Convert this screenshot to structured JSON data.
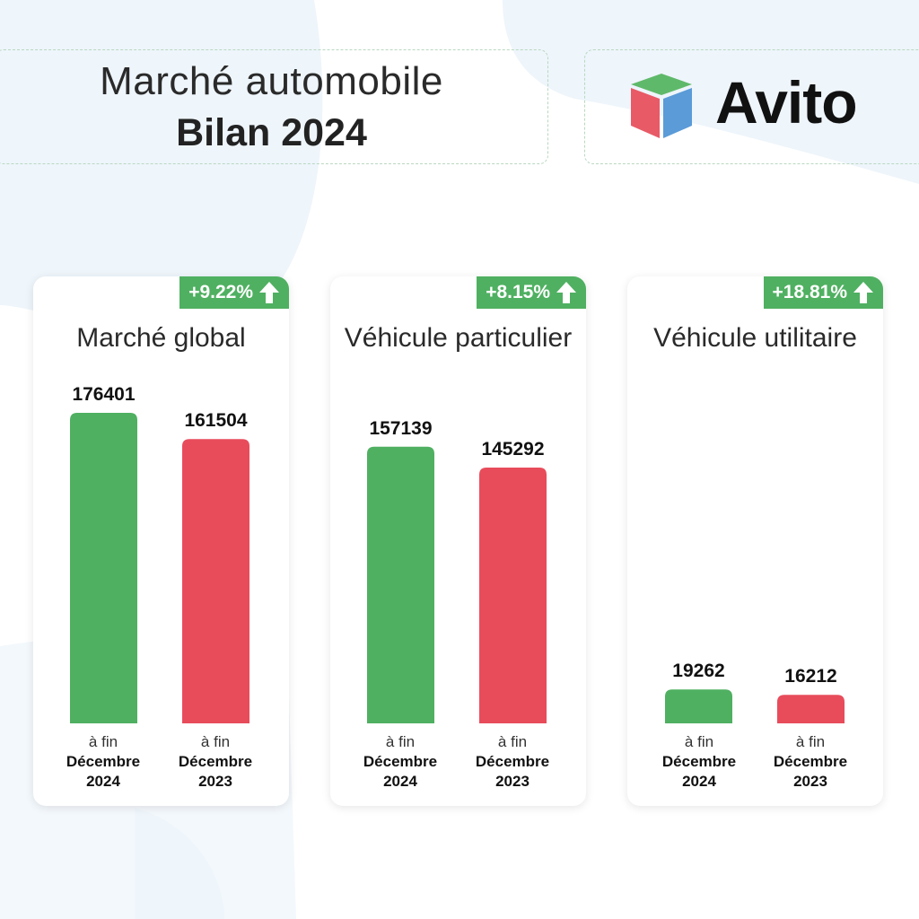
{
  "header": {
    "title_line1": "Marché automobile",
    "title_line2": "Bilan 2024",
    "brand": "Avito",
    "icons": [
      "avito-cube-logo"
    ]
  },
  "colors": {
    "green": "#4fb061",
    "red": "#e84c5b",
    "logo_green": "#5fb96a",
    "logo_red": "#e85a66",
    "logo_blue": "#5a9bd8"
  },
  "chart_data": [
    {
      "type": "bar",
      "title": "Marché global",
      "change": "+9.22%",
      "categories": [
        [
          "à fin",
          "Décembre",
          "2024"
        ],
        [
          "à fin",
          "Décembre",
          "2023"
        ]
      ],
      "values": [
        176401,
        161504
      ],
      "colors": [
        "#4fb061",
        "#e84c5b"
      ]
    },
    {
      "type": "bar",
      "title": "Véhicule particulier",
      "change": "+8.15%",
      "categories": [
        [
          "à fin",
          "Décembre",
          "2024"
        ],
        [
          "à fin",
          "Décembre",
          "2023"
        ]
      ],
      "values": [
        157139,
        145292
      ],
      "colors": [
        "#4fb061",
        "#e84c5b"
      ]
    },
    {
      "type": "bar",
      "title": "Véhicule utilitaire",
      "change": "+18.81%",
      "categories": [
        [
          "à fin",
          "Décembre",
          "2024"
        ],
        [
          "à fin",
          "Décembre",
          "2023"
        ]
      ],
      "values": [
        19262,
        16212
      ],
      "colors": [
        "#4fb061",
        "#e84c5b"
      ]
    }
  ]
}
